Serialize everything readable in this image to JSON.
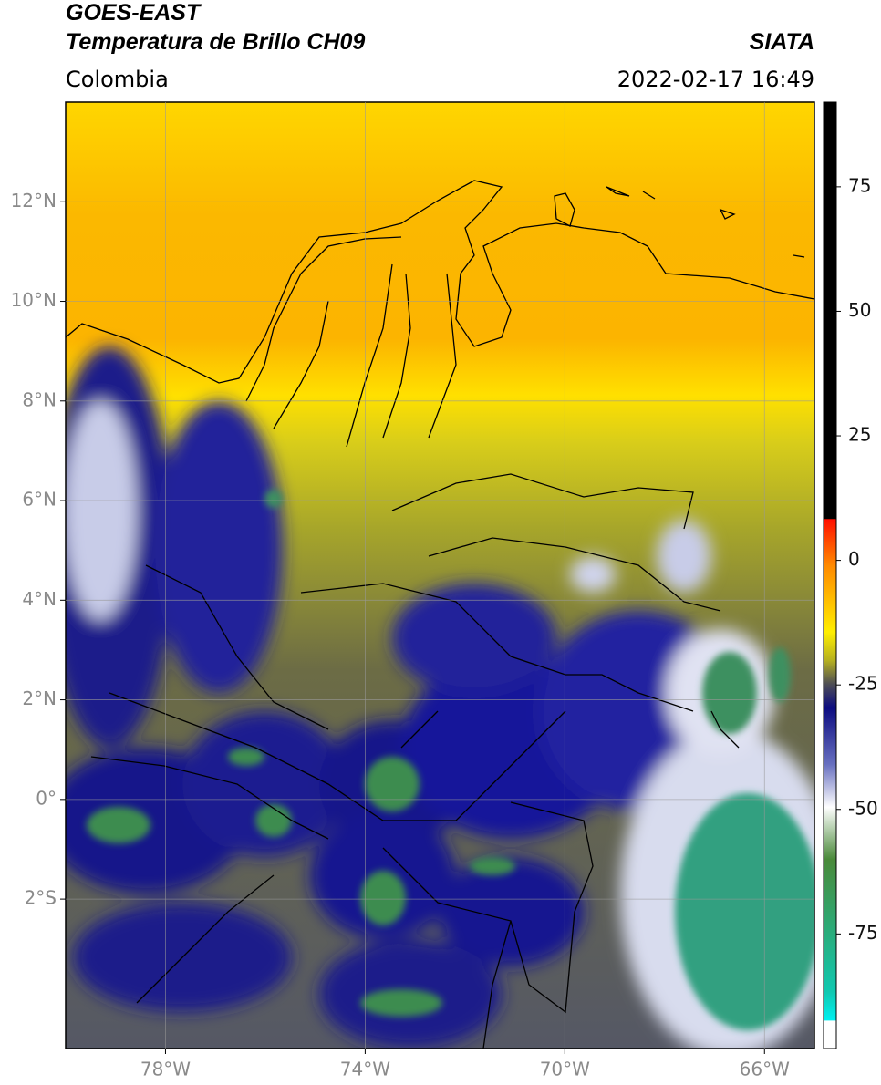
{
  "header": {
    "satellite": "GOES-EAST",
    "product": "Temperatura de Brillo CH09",
    "region": "Colombia",
    "source": "SIATA",
    "datetime": "2022-02-17 16:49"
  },
  "map": {
    "xlim": [
      -80,
      -65
    ],
    "ylim": [
      -5,
      14
    ],
    "grid": true,
    "xticks": [
      {
        "value": -78,
        "label": "78°W"
      },
      {
        "value": -74,
        "label": "74°W"
      },
      {
        "value": -70,
        "label": "70°W"
      },
      {
        "value": -66,
        "label": "66°W"
      }
    ],
    "yticks": [
      {
        "value": 12,
        "label": "12°N"
      },
      {
        "value": 10,
        "label": "10°N"
      },
      {
        "value": 8,
        "label": "8°N"
      },
      {
        "value": 6,
        "label": "6°N"
      },
      {
        "value": 4,
        "label": "4°N"
      },
      {
        "value": 2,
        "label": "2°N"
      },
      {
        "value": 0,
        "label": "0°"
      },
      {
        "value": -2,
        "label": "2°S"
      }
    ]
  },
  "colorbar": {
    "lim": [
      -98,
      92
    ],
    "ticks": [
      75,
      50,
      25,
      0,
      -25,
      -50,
      -75
    ]
  }
}
